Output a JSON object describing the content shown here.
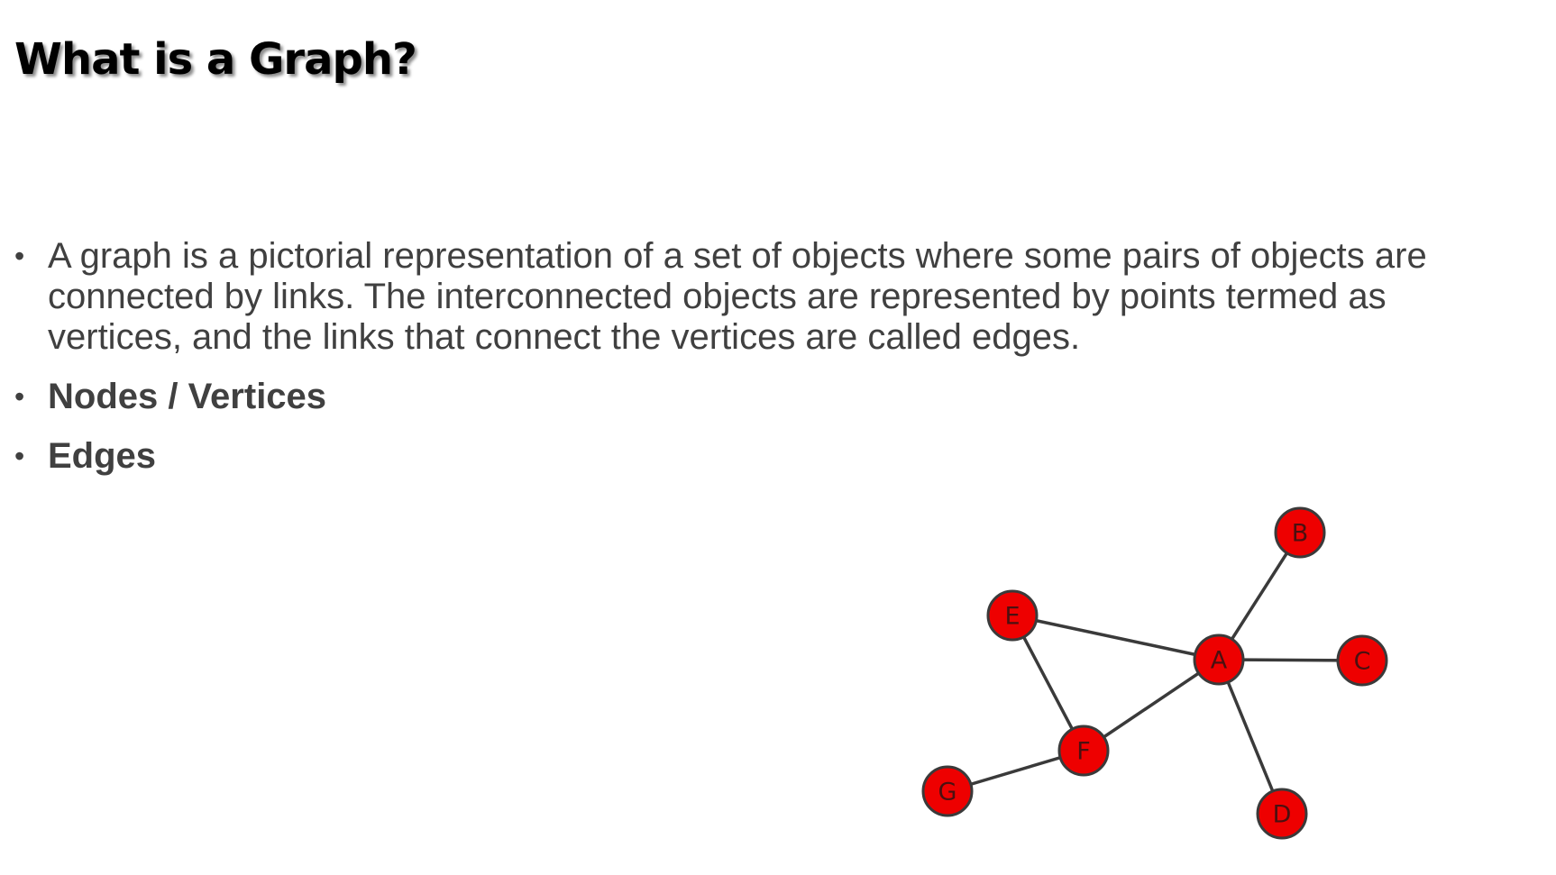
{
  "slide": {
    "title": "What is a Graph?",
    "bullets": [
      {
        "text": "A graph is a pictorial representation of a set of objects where some pairs of objects are connected by links. The interconnected objects are represented by points termed as vertices, and the links that connect the vertices are called edges.",
        "bold": false
      },
      {
        "text": "Nodes / Vertices",
        "bold": true
      },
      {
        "text": "Edges",
        "bold": true
      }
    ],
    "bullet_symbol": "•"
  },
  "graph": {
    "nodes": [
      {
        "id": "A",
        "label": "A"
      },
      {
        "id": "B",
        "label": "B"
      },
      {
        "id": "C",
        "label": "C"
      },
      {
        "id": "D",
        "label": "D"
      },
      {
        "id": "E",
        "label": "E"
      },
      {
        "id": "F",
        "label": "F"
      },
      {
        "id": "G",
        "label": "G"
      }
    ],
    "edges": [
      [
        "A",
        "B"
      ],
      [
        "A",
        "C"
      ],
      [
        "A",
        "D"
      ],
      [
        "A",
        "E"
      ],
      [
        "A",
        "F"
      ],
      [
        "E",
        "F"
      ],
      [
        "F",
        "G"
      ]
    ],
    "colors": {
      "node_fill": "#ee0000",
      "node_stroke": "#3a3a3a",
      "edge": "#3a3a3a",
      "label": "#4a1010",
      "body_text": "#404040",
      "title_text": "#000000"
    }
  }
}
